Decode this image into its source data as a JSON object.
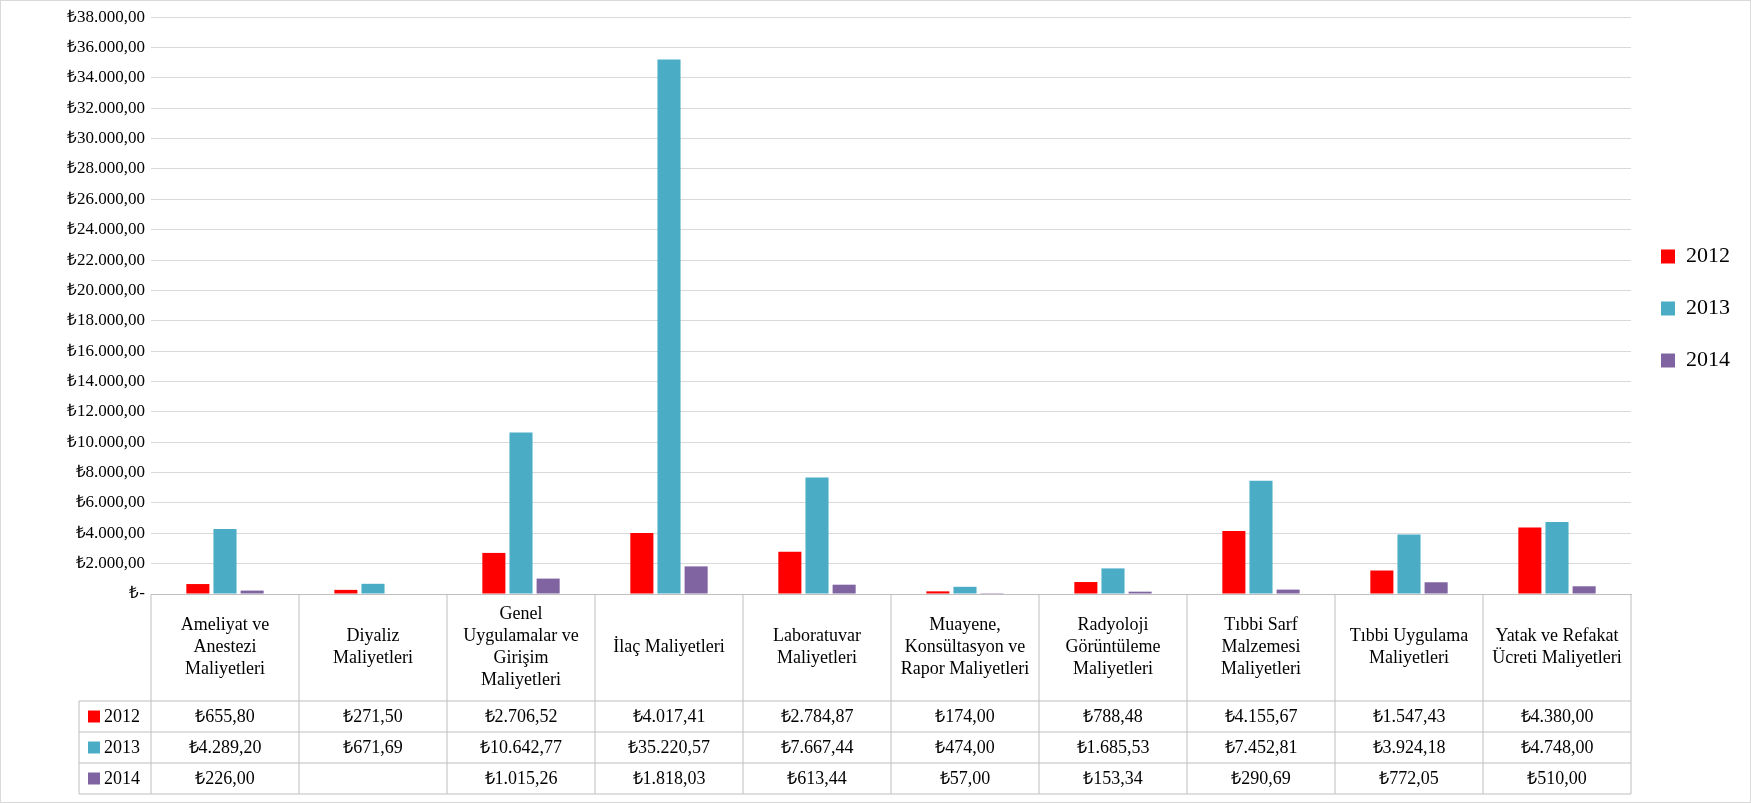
{
  "chart_data": {
    "type": "bar",
    "categories": [
      "Ameliyat ve Anestezi Maliyetleri",
      "Diyaliz Maliyetleri",
      "Genel Uygulamalar ve Girişim Maliyetleri",
      "İlaç Maliyetleri",
      "Laboratuvar Maliyetleri",
      "Muayene, Konsültasyon ve Rapor Maliyetleri",
      "Radyoloji Görüntüleme Maliyetleri",
      "Tıbbi Sarf Malzemesi Maliyetleri",
      "Tıbbi Uygulama Maliyetleri",
      "Yatak ve Refakat Ücreti Maliyetleri"
    ],
    "series": [
      {
        "name": "2012",
        "color": "#ff0000",
        "values": [
          655.8,
          271.5,
          2706.52,
          4017.41,
          2784.87,
          174.0,
          788.48,
          4155.67,
          1547.43,
          4380.0
        ],
        "value_labels": [
          "₺655,80",
          "₺271,50",
          "₺2.706,52",
          "₺4.017,41",
          "₺2.784,87",
          "₺174,00",
          "₺788,48",
          "₺4.155,67",
          "₺1.547,43",
          "₺4.380,00"
        ]
      },
      {
        "name": "2013",
        "color": "#4bacc6",
        "values": [
          4289.2,
          671.69,
          10642.77,
          35220.57,
          7667.44,
          474.0,
          1685.53,
          7452.81,
          3924.18,
          4748.0
        ],
        "value_labels": [
          "₺4.289,20",
          "₺671,69",
          "₺10.642,77",
          "₺35.220,57",
          "₺7.667,44",
          "₺474,00",
          "₺1.685,53",
          "₺7.452,81",
          "₺3.924,18",
          "₺4.748,00"
        ]
      },
      {
        "name": "2014",
        "color": "#8064a2",
        "values": [
          226.0,
          null,
          1015.26,
          1818.03,
          613.44,
          57.0,
          153.34,
          290.69,
          772.05,
          510.0
        ],
        "value_labels": [
          "₺226,00",
          null,
          "₺1.015,26",
          "₺1.818,03",
          "₺613,44",
          "₺57,00",
          "₺153,34",
          "₺290,69",
          "₺772,05",
          "₺510,00"
        ]
      }
    ],
    "ylim": [
      0,
      38000
    ],
    "yticks": [
      {
        "value": 0,
        "label": "₺-"
      },
      {
        "value": 2000,
        "label": "₺2.000,00"
      },
      {
        "value": 4000,
        "label": "₺4.000,00"
      },
      {
        "value": 6000,
        "label": "₺6.000,00"
      },
      {
        "value": 8000,
        "label": "₺8.000,00"
      },
      {
        "value": 10000,
        "label": "₺10.000,00"
      },
      {
        "value": 12000,
        "label": "₺12.000,00"
      },
      {
        "value": 14000,
        "label": "₺14.000,00"
      },
      {
        "value": 16000,
        "label": "₺16.000,00"
      },
      {
        "value": 18000,
        "label": "₺18.000,00"
      },
      {
        "value": 20000,
        "label": "₺20.000,00"
      },
      {
        "value": 22000,
        "label": "₺22.000,00"
      },
      {
        "value": 24000,
        "label": "₺24.000,00"
      },
      {
        "value": 26000,
        "label": "₺26.000,00"
      },
      {
        "value": 28000,
        "label": "₺28.000,00"
      },
      {
        "value": 30000,
        "label": "₺30.000,00"
      },
      {
        "value": 32000,
        "label": "₺32.000,00"
      },
      {
        "value": 34000,
        "label": "₺34.000,00"
      },
      {
        "value": 36000,
        "label": "₺36.000,00"
      },
      {
        "value": 38000,
        "label": "₺38.000,00"
      }
    ],
    "grid": "y",
    "legend": "right"
  }
}
